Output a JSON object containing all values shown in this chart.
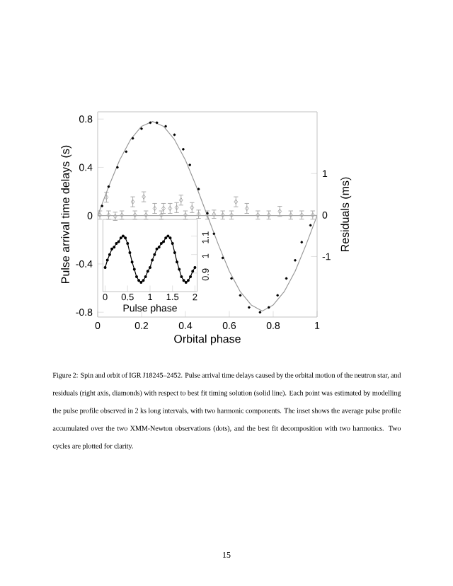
{
  "chart_data": [
    {
      "type": "scatter",
      "xlabel": "Orbital phase",
      "ylabel": "Pulse arrival time delays (s)",
      "y2label": "Residuals (ms)",
      "xlim": [
        0,
        1
      ],
      "ylim": [
        -0.84,
        0.86
      ],
      "y2lim": [
        -2.46,
        2.49
      ],
      "xticks": [
        0,
        0.2,
        0.4,
        0.6,
        0.8,
        1
      ],
      "yticks": [
        -0.8,
        -0.4,
        0,
        0.4,
        0.8
      ],
      "y2ticks": [
        -1,
        0,
        1
      ],
      "ref_lines": [
        {
          "axis": "y",
          "value": 0,
          "color": "#aaaaaa"
        }
      ],
      "series": [
        {
          "marker": "circle",
          "color": "#000000",
          "x": [
            0.02,
            0.05,
            0.09,
            0.13,
            0.16,
            0.2,
            0.24,
            0.27,
            0.31,
            0.35,
            0.39,
            0.42,
            0.46,
            0.5,
            0.53,
            0.57,
            0.61,
            0.65,
            0.69,
            0.74,
            0.78,
            0.82,
            0.86,
            0.9,
            0.93,
            0.97
          ],
          "values": [
            0.08,
            0.24,
            0.4,
            0.53,
            0.64,
            0.72,
            0.77,
            0.77,
            0.74,
            0.67,
            0.55,
            0.42,
            0.22,
            0.02,
            -0.15,
            -0.35,
            -0.52,
            -0.66,
            -0.76,
            -0.8,
            -0.76,
            -0.66,
            -0.52,
            -0.37,
            -0.22,
            -0.08
          ]
        },
        {
          "type": "line",
          "marker": "none",
          "line_style": "solid",
          "color": "#999999",
          "x": [
            0,
            0.05,
            0.1,
            0.15,
            0.2,
            0.25,
            0.3,
            0.35,
            0.4,
            0.45,
            0.5,
            0.55,
            0.6,
            0.65,
            0.7,
            0.75,
            0.8,
            0.85,
            0.9,
            0.95,
            1
          ],
          "values": [
            0,
            0.24,
            0.46,
            0.63,
            0.74,
            0.78,
            0.74,
            0.63,
            0.46,
            0.24,
            0,
            -0.24,
            -0.46,
            -0.63,
            -0.74,
            -0.79,
            -0.74,
            -0.63,
            -0.46,
            -0.24,
            0
          ]
        },
        {
          "marker": "diamond",
          "axis": "y2",
          "color": "#999999",
          "x": [
            0.01,
            0.04,
            0.05,
            0.08,
            0.11,
            0.16,
            0.17,
            0.21,
            0.22,
            0.26,
            0.29,
            0.3,
            0.33,
            0.36,
            0.38,
            0.4,
            0.43,
            0.46,
            0.5,
            0.53,
            0.57,
            0.61,
            0.63,
            0.68,
            0.73,
            0.78,
            0.83,
            0.88,
            0.93,
            0.98
          ],
          "values": [
            0.0,
            0.43,
            0.0,
            -0.03,
            0.0,
            0.32,
            0.0,
            0.44,
            0.0,
            0.16,
            0.0,
            0.16,
            0.16,
            0.18,
            0.36,
            0.0,
            0.18,
            0.02,
            0.0,
            0.02,
            0.0,
            0.0,
            0.32,
            0.16,
            0.0,
            0.0,
            0.09,
            0.0,
            0.0,
            0.0
          ],
          "errors": [
            0.1,
            0.12,
            0.1,
            0.1,
            0.1,
            0.12,
            0.1,
            0.12,
            0.1,
            0.12,
            0.1,
            0.12,
            0.12,
            0.12,
            0.12,
            0.1,
            0.12,
            0.1,
            0.1,
            0.1,
            0.1,
            0.1,
            0.12,
            0.12,
            0.1,
            0.1,
            0.12,
            0.1,
            0.1,
            0.1
          ]
        }
      ],
      "annotations": [
        "Figure 2: Spin and orbit of IGR J18245–2452. Pulse arrival time delays caused by the orbital motion of the neutron star, and residuals (right axis, diamonds) with respect to best fit timing solution (solid line). Each point was estimated by modelling the pulse profile observed in 2 ks long intervals, with two harmonic components. The inset shows the average pulse profile accumulated over the two XMM-Newton observations (dots), and the best fit decomposition with two harmonics. Two cycles are plotted for clarity.",
        "15"
      ]
    },
    {
      "type": "line",
      "xlabel": "Pulse phase",
      "xlim": [
        -0.05,
        2.05
      ],
      "ylim": [
        0.8,
        1.19
      ],
      "xticks": [
        0,
        0.5,
        1,
        1.5,
        2
      ],
      "yticks": [
        0.9,
        1,
        1.1
      ],
      "series": [
        {
          "marker": "circle",
          "line_style": "solid",
          "color": "#000000",
          "x": [
            0,
            0.05,
            0.1,
            0.15,
            0.2,
            0.25,
            0.3,
            0.35,
            0.4,
            0.45,
            0.5,
            0.55,
            0.6,
            0.65,
            0.7,
            0.75,
            0.8,
            0.85,
            0.9,
            0.95,
            1,
            1.05,
            1.1,
            1.15,
            1.2,
            1.25,
            1.3,
            1.35,
            1.4,
            1.45,
            1.5,
            1.55,
            1.6,
            1.65,
            1.7,
            1.75,
            1.8,
            1.85,
            1.9,
            1.95,
            2
          ],
          "values": [
            0.93,
            0.97,
            1.0,
            1.03,
            1.04,
            1.06,
            1.07,
            1.09,
            1.1,
            1.09,
            1.06,
            1.01,
            0.96,
            0.92,
            0.88,
            0.86,
            0.85,
            0.86,
            0.88,
            0.91,
            0.93,
            0.97,
            1.0,
            1.03,
            1.04,
            1.06,
            1.07,
            1.09,
            1.1,
            1.09,
            1.06,
            1.01,
            0.96,
            0.92,
            0.88,
            0.86,
            0.85,
            0.86,
            0.88,
            0.91,
            0.93
          ]
        }
      ]
    }
  ]
}
